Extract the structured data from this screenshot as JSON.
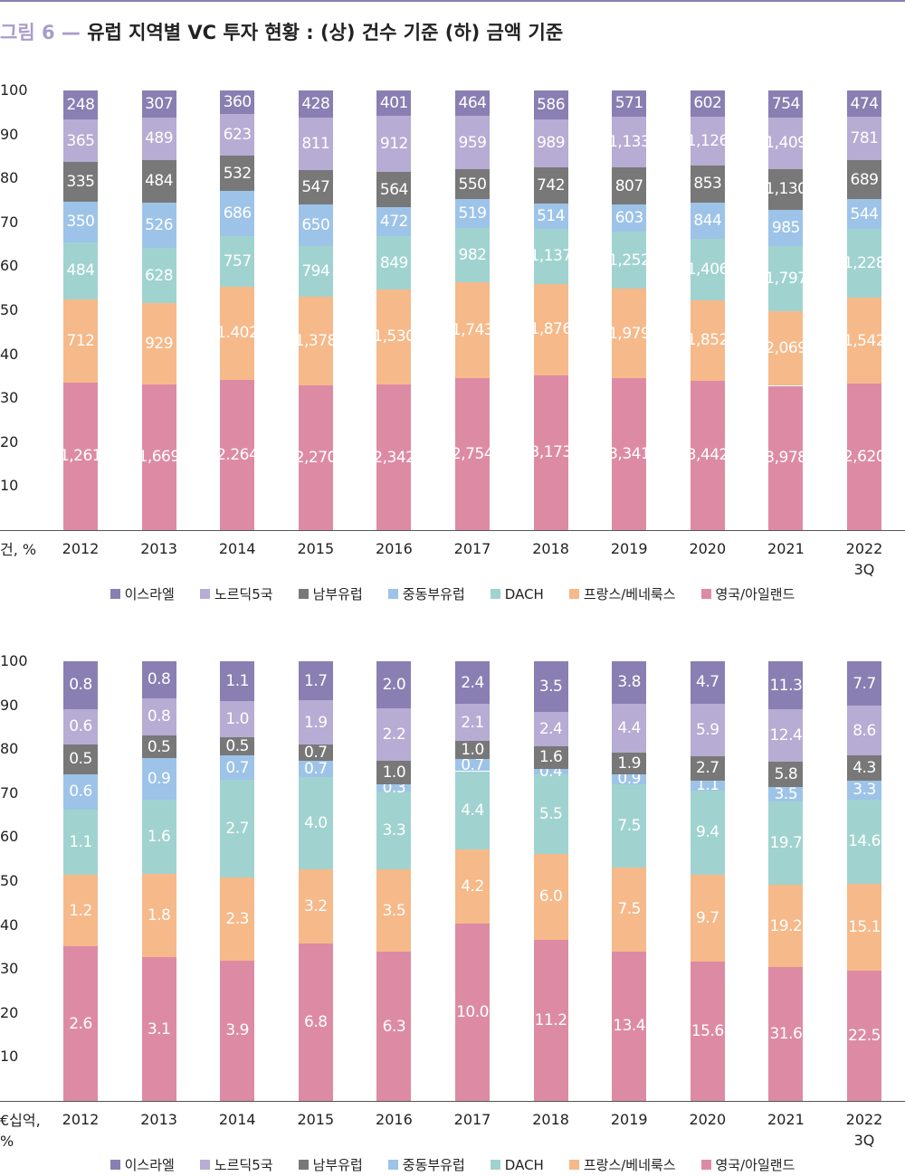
{
  "figure_label": "그림 6 —",
  "title": "유럽 지역별 VC 투자 현황 :  (상) 건수 기준 (하) 금액 기준",
  "chart_data": [
    {
      "type": "bar",
      "stacked": "percent",
      "y_axis_label": "건, %",
      "legend": "bottom",
      "categories": [
        "2012",
        "2013",
        "2014",
        "2015",
        "2016",
        "2017",
        "2018",
        "2019",
        "2020",
        "2021",
        "2022 3Q"
      ],
      "ylim": [
        0,
        100
      ],
      "yticks": [
        10,
        20,
        30,
        40,
        50,
        60,
        70,
        80,
        90,
        100
      ],
      "series": [
        {
          "name": "이스라엘",
          "color": "#8a7fb2",
          "values": [
            248,
            307,
            360,
            428,
            401,
            464,
            586,
            571,
            602,
            754,
            474
          ],
          "value_labels": [
            "248",
            "307",
            "360",
            "428",
            "401",
            "464",
            "586",
            "571",
            "602",
            "754",
            "474"
          ]
        },
        {
          "name": "노르딕5국",
          "color": "#b7acd3",
          "values": [
            365,
            489,
            623,
            811,
            912,
            959,
            989,
            1133,
            1126,
            1409,
            781
          ],
          "value_labels": [
            "365",
            "489",
            "623",
            "811",
            "912",
            "959",
            "989",
            "1,133",
            "1,126",
            "1,409",
            "781"
          ]
        },
        {
          "name": "남부유럽",
          "color": "#787878",
          "values": [
            335,
            484,
            532,
            547,
            564,
            550,
            742,
            807,
            853,
            1130,
            689
          ],
          "value_labels": [
            "335",
            "484",
            "532",
            "547",
            "564",
            "550",
            "742",
            "807",
            "853",
            "1,130",
            "689"
          ]
        },
        {
          "name": "중동부유럽",
          "color": "#9dc3e8",
          "values": [
            350,
            526,
            686,
            650,
            472,
            519,
            514,
            603,
            844,
            985,
            544
          ],
          "value_labels": [
            "350",
            "526",
            "686",
            "650",
            "472",
            "519",
            "514",
            "603",
            "844",
            "985",
            "544"
          ]
        },
        {
          "name": "DACH",
          "color": "#a0d3cf",
          "values": [
            484,
            628,
            757,
            794,
            849,
            982,
            1137,
            1252,
            1406,
            1797,
            1228
          ],
          "value_labels": [
            "484",
            "628",
            "757",
            "794",
            "849",
            "982",
            "1,137",
            "1,252",
            "1,406",
            "1,797",
            "1,228"
          ]
        },
        {
          "name": "프랑스/베네룩스",
          "color": "#f6b98a",
          "values": [
            712,
            929,
            1402,
            1378,
            1530,
            1743,
            1876,
            1979,
            1852,
            2069,
            1542
          ],
          "value_labels": [
            "712",
            "929",
            "1.402",
            "1,378",
            "1,530",
            "1,743",
            "1,876",
            "1,979",
            "1,852",
            "2,069",
            "1,542"
          ]
        },
        {
          "name": "영국/아일랜드",
          "color": "#dd8ba5",
          "values": [
            1261,
            1669,
            2264,
            2270,
            2342,
            2754,
            3173,
            3341,
            3442,
            3978,
            2620
          ],
          "value_labels": [
            "1,261",
            "1,669",
            "2.264",
            "2,270",
            "2,342",
            "2,754",
            "3,173",
            "3,341",
            "3,442",
            "3,978",
            "2,620"
          ]
        }
      ]
    },
    {
      "type": "bar",
      "stacked": "percent",
      "y_axis_label": "€십억, %",
      "legend": "bottom",
      "categories": [
        "2012",
        "2013",
        "2014",
        "2015",
        "2016",
        "2017",
        "2018",
        "2019",
        "2020",
        "2021",
        "2022 3Q"
      ],
      "ylim": [
        0,
        100
      ],
      "yticks": [
        10,
        20,
        30,
        40,
        50,
        60,
        70,
        80,
        90,
        100
      ],
      "series": [
        {
          "name": "이스라엘",
          "color": "#8a7fb2",
          "values": [
            0.8,
            0.8,
            1.1,
            1.7,
            2.0,
            2.4,
            3.5,
            3.8,
            4.7,
            11.3,
            7.7
          ],
          "value_labels": [
            "0.8",
            "0.8",
            "1.1",
            "1.7",
            "2.0",
            "2.4",
            "3.5",
            "3.8",
            "4.7",
            "11.3",
            "7.7"
          ]
        },
        {
          "name": "노르딕5국",
          "color": "#b7acd3",
          "values": [
            0.6,
            0.8,
            1.0,
            1.9,
            2.2,
            2.1,
            2.4,
            4.4,
            5.9,
            12.4,
            8.6
          ],
          "value_labels": [
            "0.6",
            "0.8",
            "1.0",
            "1.9",
            "2.2",
            "2.1",
            "2.4",
            "4.4",
            "5.9",
            "12.4",
            "8.6"
          ]
        },
        {
          "name": "남부유럽",
          "color": "#787878",
          "values": [
            0.5,
            0.5,
            0.5,
            0.7,
            1.0,
            1.0,
            1.6,
            1.9,
            2.7,
            5.8,
            4.3
          ],
          "value_labels": [
            "0.5",
            "0.5",
            "0.5",
            "0.7",
            "1.0",
            "1.0",
            "1.6",
            "1.9",
            "2.7",
            "5.8",
            "4.3"
          ]
        },
        {
          "name": "중동부유럽",
          "color": "#9dc3e8",
          "values": [
            0.6,
            0.9,
            0.7,
            0.7,
            0.3,
            0.7,
            0.4,
            0.9,
            1.1,
            3.5,
            3.3
          ],
          "value_labels": [
            "0.6",
            "0.9",
            "0.7",
            "0.7",
            "0.3",
            "0.7",
            "0.4",
            "0.9",
            "1.1",
            "3.5",
            "3.3"
          ]
        },
        {
          "name": "DACH",
          "color": "#a0d3cf",
          "values": [
            1.1,
            1.6,
            2.7,
            4.0,
            3.3,
            4.4,
            5.5,
            7.5,
            9.4,
            19.7,
            14.6
          ],
          "value_labels": [
            "1.1",
            "1.6",
            "2.7",
            "4.0",
            "3.3",
            "4.4",
            "5.5",
            "7.5",
            "9.4",
            "19.7",
            "14.6"
          ]
        },
        {
          "name": "프랑스/베네룩스",
          "color": "#f6b98a",
          "values": [
            1.2,
            1.8,
            2.3,
            3.2,
            3.5,
            4.2,
            6.0,
            7.5,
            9.7,
            19.2,
            15.1
          ],
          "value_labels": [
            "1.2",
            "1.8",
            "2.3",
            "3.2",
            "3.5",
            "4.2",
            "6.0",
            "7.5",
            "9.7",
            "19.2",
            "15.1"
          ]
        },
        {
          "name": "영국/아일랜드",
          "color": "#dd8ba5",
          "values": [
            2.6,
            3.1,
            3.9,
            6.8,
            6.3,
            10.0,
            11.2,
            13.4,
            15.6,
            31.6,
            22.5
          ],
          "value_labels": [
            "2.6",
            "3.1",
            "3.9",
            "6.8",
            "6.3",
            "10.0",
            "11.2",
            "13.4",
            "15.6",
            "31.6",
            "22.5"
          ]
        }
      ]
    }
  ]
}
